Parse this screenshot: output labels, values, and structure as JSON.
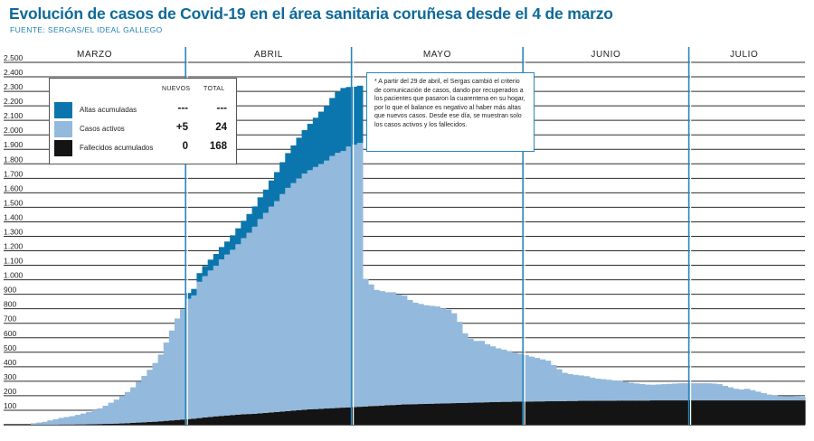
{
  "title": "Evolución de casos de Covid-19 en el área sanitaria coruñesa desde el 4 de marzo",
  "source": "FUENTE: SERGAS/EL IDEAL GALLEGO",
  "legend": {
    "col_new": "NUEVOS",
    "col_total": "TOTAL",
    "rows": [
      {
        "label": "Altas acumuladas",
        "new": "---",
        "total": "---",
        "color": "#0b76ad"
      },
      {
        "label": "Casos activos",
        "new": "+5",
        "total": "24",
        "color": "#93b9dc"
      },
      {
        "label": "Fallecidos acumulados",
        "new": "0",
        "total": "168",
        "color": "#141414"
      }
    ]
  },
  "note": "* A partir del 29 de abril, el Sergas cambió el criterio de comunicación de casos, dando por recuperados a los pacientes que pasaron la cuarentena en su hogar, por lo que el balance es negativo al haber más altas que nuevos casos. Desde ese día, se muestran solo los casos activos y los fallecidos.",
  "colors": {
    "altas": "#0b76ad",
    "activos": "#93b9dc",
    "fallecidos": "#141414",
    "accent": "#0d6a9a",
    "month_line": "#2a87bb"
  },
  "chart_data": {
    "type": "area",
    "stacked": true,
    "ylim": [
      0,
      2500
    ],
    "yticks": [
      100,
      200,
      300,
      400,
      500,
      600,
      700,
      800,
      900,
      1000,
      1100,
      1200,
      1300,
      1400,
      1500,
      1600,
      1700,
      1800,
      1900,
      2000,
      2100,
      2200,
      2300,
      2400,
      2500
    ],
    "ytick_labels": [
      "100",
      "200",
      "300",
      "400",
      "500",
      "600",
      "700",
      "800",
      "900",
      "1.000",
      "1.100",
      "1.200",
      "1.300",
      "1.400",
      "1.500",
      "1.600",
      "1.700",
      "1.800",
      "1.900",
      "2.000",
      "2.100",
      "2.200",
      "2.300",
      "2.400",
      "2.500"
    ],
    "months": [
      "MARZO",
      "ABRIL",
      "MAYO",
      "JUNIO",
      "JULIO"
    ],
    "month_days": [
      28,
      30,
      31,
      30,
      20
    ],
    "grid": true,
    "legend_position": "top-left",
    "series_names": [
      "Altas acumuladas",
      "Casos activos",
      "Fallecidos acumulados"
    ],
    "fallecidos": [
      0,
      0,
      0,
      0,
      0,
      1,
      1,
      1,
      2,
      2,
      3,
      4,
      5,
      6,
      7,
      8,
      9,
      11,
      13,
      15,
      17,
      19,
      21,
      24,
      27,
      30,
      33,
      36,
      39,
      42,
      46,
      50,
      54,
      58,
      61,
      64,
      67,
      70,
      72,
      74,
      76,
      79,
      82,
      85,
      88,
      91,
      94,
      97,
      100,
      103,
      106,
      108,
      110,
      112,
      114,
      116,
      118,
      120,
      122,
      124,
      126,
      128,
      130,
      132,
      134,
      136,
      138,
      140,
      141,
      142,
      143,
      144,
      145,
      146,
      147,
      148,
      149,
      150,
      151,
      152,
      153,
      154,
      155,
      156,
      157,
      158,
      158,
      159,
      159,
      160,
      160,
      161,
      161,
      162,
      162,
      163,
      163,
      164,
      164,
      165,
      165,
      165,
      166,
      166,
      166,
      166,
      167,
      167,
      167,
      167,
      167,
      167,
      168,
      168,
      168,
      168,
      168,
      168,
      168,
      168,
      168,
      168,
      168,
      168,
      168,
      168,
      168,
      168,
      168,
      168,
      168,
      168,
      168,
      168,
      168,
      168,
      168,
      168,
      168,
      168
    ],
    "activos": [
      10,
      15,
      20,
      30,
      38,
      46,
      52,
      58,
      66,
      75,
      85,
      96,
      108,
      125,
      145,
      165,
      190,
      215,
      245,
      280,
      320,
      360,
      405,
      460,
      540,
      620,
      700,
      760,
      830,
      850,
      940,
      975,
      1010,
      1040,
      1080,
      1110,
      1140,
      1175,
      1215,
      1250,
      1290,
      1340,
      1380,
      1420,
      1455,
      1500,
      1540,
      1570,
      1600,
      1630,
      1650,
      1670,
      1690,
      1710,
      1740,
      1760,
      1770,
      1800,
      1810,
      1820,
      880,
      840,
      800,
      790,
      780,
      778,
      760,
      750,
      720,
      700,
      690,
      680,
      675,
      670,
      655,
      645,
      620,
      560,
      480,
      440,
      425,
      425,
      400,
      385,
      370,
      360,
      350,
      340,
      330,
      320,
      310,
      300,
      290,
      280,
      250,
      220,
      195,
      185,
      180,
      175,
      170,
      160,
      152,
      148,
      144,
      140,
      136,
      130,
      122,
      118,
      114,
      110,
      108,
      110,
      112,
      114,
      116,
      118,
      118,
      118,
      118,
      118,
      118,
      116,
      112,
      100,
      90,
      80,
      75,
      80,
      70,
      60,
      50,
      40,
      35,
      30,
      28,
      28,
      26,
      24
    ],
    "altas": [
      0,
      0,
      0,
      0,
      0,
      0,
      0,
      0,
      0,
      0,
      0,
      0,
      0,
      0,
      0,
      0,
      0,
      0,
      0,
      0,
      0,
      0,
      0,
      0,
      0,
      0,
      0,
      0,
      40,
      45,
      60,
      70,
      75,
      80,
      85,
      90,
      100,
      110,
      120,
      130,
      140,
      150,
      160,
      180,
      200,
      220,
      240,
      260,
      280,
      300,
      320,
      340,
      360,
      380,
      400,
      420,
      435,
      410,
      400,
      395,
      0,
      0,
      0,
      0,
      0,
      0,
      0,
      0,
      0,
      0,
      0,
      0,
      0,
      0,
      0,
      0,
      0,
      0,
      0,
      0,
      0,
      0,
      0,
      0,
      0,
      0,
      0,
      0,
      0,
      0,
      0,
      0,
      0,
      0,
      0,
      0,
      0,
      0,
      0,
      0,
      0,
      0,
      0,
      0,
      0,
      0,
      0,
      0,
      0,
      0,
      0,
      0,
      0,
      0,
      0,
      0,
      0,
      0,
      0,
      0,
      0,
      0,
      0,
      0,
      0,
      0,
      0,
      0,
      0,
      0,
      0,
      0,
      0,
      0,
      0,
      0,
      0,
      0,
      0
    ]
  }
}
